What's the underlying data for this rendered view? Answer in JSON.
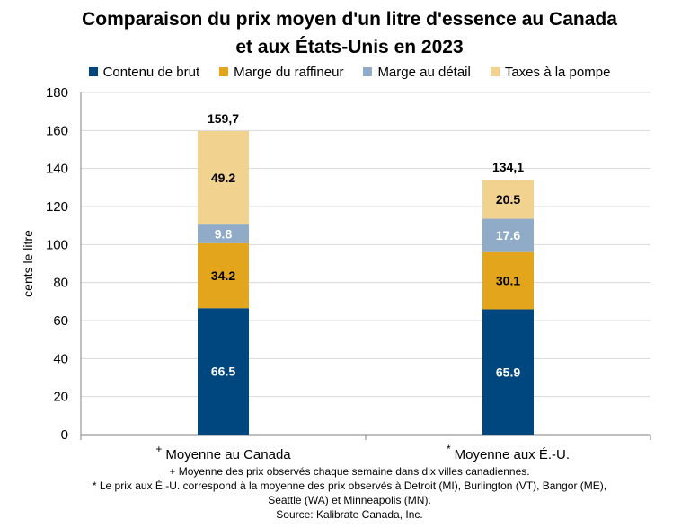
{
  "chart_data": {
    "type": "bar",
    "stacked": true,
    "title_lines": [
      "Comparaison du prix moyen d'un litre d'essence au Canada",
      "et aux États-Unis en 2023"
    ],
    "ylabel": "cents le litre",
    "ylim": [
      0,
      180
    ],
    "yticks": [
      0,
      20,
      40,
      60,
      80,
      100,
      120,
      140,
      160,
      180
    ],
    "grid": true,
    "legend_position": "top",
    "categories": [
      "Moyenne au Canada",
      "Moyenne aux É.-U."
    ],
    "category_markers": [
      "+",
      "*"
    ],
    "series": [
      {
        "name": "Contenu de brut",
        "color": "#00467f",
        "values": [
          66.5,
          65.9
        ],
        "labels": [
          "66.5",
          "65.9"
        ],
        "label_color": "#ffffff"
      },
      {
        "name": "Marge du raffineur",
        "color": "#e3a51c",
        "values": [
          34.2,
          30.1
        ],
        "labels": [
          "34.2",
          "30.1"
        ],
        "label_color": "#000000"
      },
      {
        "name": "Marge au détail",
        "color": "#8fabc8",
        "values": [
          9.8,
          17.6
        ],
        "labels": [
          "9.8",
          "17.6"
        ],
        "label_color": "#ffffff"
      },
      {
        "name": "Taxes à la pompe",
        "color": "#f2d28f",
        "values": [
          49.2,
          20.5
        ],
        "labels": [
          "49.2",
          "20.5"
        ],
        "label_color": "#000000"
      }
    ],
    "totals": [
      "159,7",
      "134,1"
    ],
    "totals_values": [
      159.7,
      134.1
    ]
  },
  "footnotes": [
    "+ Moyenne des prix observés chaque semaine dans dix villes canadiennes.",
    "* Le prix aux É.-U. correspond à la moyenne des prix observés à  Detroit (MI), Burlington (VT), Bangor (ME),",
    "Seattle (WA) et Minneapolis (MN).",
    "Source: Kalibrate Canada, Inc."
  ]
}
